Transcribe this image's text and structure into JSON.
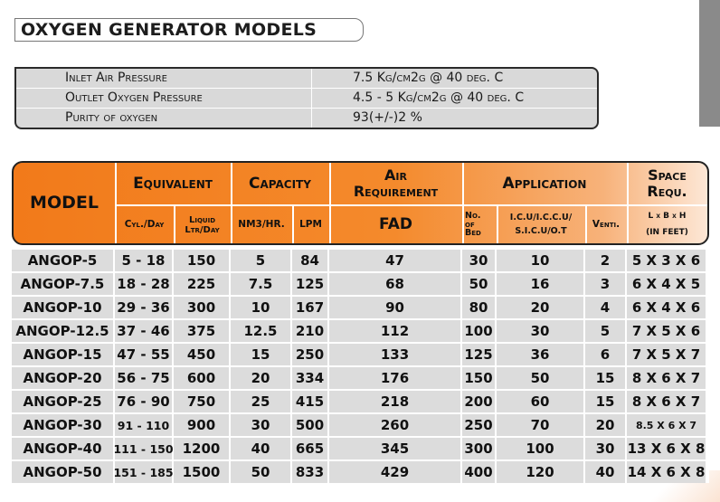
{
  "title": "OXYGEN GENERATOR MODELS",
  "specs": [
    {
      "label": "Inlet Air Pressure",
      "value": "7.5 Kg/cm2g @ 40 deg. C"
    },
    {
      "label": "Outlet Oxygen Pressure",
      "value": "4.5 - 5 Kg/cm2g @ 40 deg. C"
    },
    {
      "label": "Purity of oxygen",
      "value": "93(+/-)2 %"
    }
  ],
  "header": {
    "model": "MODEL",
    "equivalent": "Equivalent",
    "cyl_day": "Cyl./Day",
    "liquid_1": "Liquid",
    "liquid_2": "Ltr/Day",
    "capacity": "Capacity",
    "nm3": "NM3/HR.",
    "lpm": "LPM",
    "air_1": "Air",
    "air_2": "Requirement",
    "fad": "FAD",
    "application": "Application",
    "no_1": "No.",
    "no_2": "of",
    "no_3": "Bed",
    "icu_1": "I.C.U/I.C.C.U/",
    "icu_2": "S.I.C.U/O.T",
    "venti": "Venti.",
    "space_1": "Space",
    "space_2": "Requ.",
    "lxbxh": "L x B x H",
    "feet": "(IN FEET)"
  },
  "rows": [
    {
      "model": "ANGOP-5",
      "cyl": "5 - 18",
      "liquid": "150",
      "nm3": "5",
      "lpm": "84",
      "fad": "47",
      "beds": "30",
      "icu": "10",
      "venti": "2",
      "space": "5 X 3 X 6"
    },
    {
      "model": "ANGOP-7.5",
      "cyl": "18 - 28",
      "liquid": "225",
      "nm3": "7.5",
      "lpm": "125",
      "fad": "68",
      "beds": "50",
      "icu": "16",
      "venti": "3",
      "space": "6 X 4 X 5"
    },
    {
      "model": "ANGOP-10",
      "cyl": "29 - 36",
      "liquid": "300",
      "nm3": "10",
      "lpm": "167",
      "fad": "90",
      "beds": "80",
      "icu": "20",
      "venti": "4",
      "space": "6 X 4 X 6"
    },
    {
      "model": "ANGOP-12.5",
      "cyl": "37 - 46",
      "liquid": "375",
      "nm3": "12.5",
      "lpm": "210",
      "fad": "112",
      "beds": "100",
      "icu": "30",
      "venti": "5",
      "space": "7 X 5 X 6"
    },
    {
      "model": "ANGOP-15",
      "cyl": "47 - 55",
      "liquid": "450",
      "nm3": "15",
      "lpm": "250",
      "fad": "133",
      "beds": "125",
      "icu": "36",
      "venti": "6",
      "space": "7 X 5 X 7"
    },
    {
      "model": "ANGOP-20",
      "cyl": "56 - 75",
      "liquid": "600",
      "nm3": "20",
      "lpm": "334",
      "fad": "176",
      "beds": "150",
      "icu": "50",
      "venti": "15",
      "space": "8 X 6 X 7"
    },
    {
      "model": "ANGOP-25",
      "cyl": "76 - 90",
      "liquid": "750",
      "nm3": "25",
      "lpm": "415",
      "fad": "218",
      "beds": "200",
      "icu": "60",
      "venti": "15",
      "space": "8 X 6 X 7"
    },
    {
      "model": "ANGOP-30",
      "cyl": "91 - 110",
      "liquid": "900",
      "nm3": "30",
      "lpm": "500",
      "fad": "260",
      "beds": "250",
      "icu": "70",
      "venti": "20",
      "space": "8.5 X 6 X 7"
    },
    {
      "model": "ANGOP-40",
      "cyl": "111 - 150",
      "liquid": "1200",
      "nm3": "40",
      "lpm": "665",
      "fad": "345",
      "beds": "300",
      "icu": "100",
      "venti": "30",
      "space": "13 X 6 X 8"
    },
    {
      "model": "ANGOP-50",
      "cyl": "151 - 185",
      "liquid": "1500",
      "nm3": "50",
      "lpm": "833",
      "fad": "429",
      "beds": "400",
      "icu": "120",
      "venti": "40",
      "space": "14 X 6 X 8"
    }
  ],
  "colors": {
    "header_orange": "#f27a1a",
    "row_gray": "#dcdcdc",
    "spec_gray": "#d9d9d9"
  }
}
